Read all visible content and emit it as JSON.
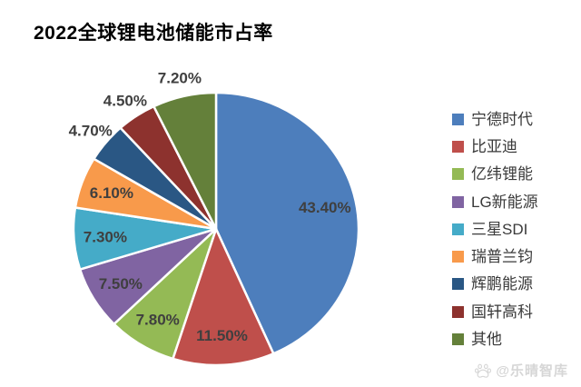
{
  "chart_data": {
    "type": "pie",
    "title": "2022全球锂电池储能市占率",
    "categories": [
      "宁德时代",
      "比亚迪",
      "亿纬锂能",
      "LG新能源",
      "三星SDI",
      "瑞普兰钧",
      "辉鹏能源",
      "国轩高科",
      "其他"
    ],
    "values": [
      43.4,
      11.5,
      7.8,
      7.5,
      7.3,
      6.1,
      4.7,
      4.5,
      7.2
    ],
    "labels": [
      "43.40%",
      "11.50%",
      "7.80%",
      "7.50%",
      "7.30%",
      "6.10%",
      "4.70%",
      "4.50%",
      "7.20%"
    ],
    "colors": [
      "#4d7ebc",
      "#bf4f4b",
      "#94ba55",
      "#8064a2",
      "#45abc8",
      "#f89a4b",
      "#2a5784",
      "#8d322e",
      "#64803a"
    ],
    "label_placement": [
      "inside",
      "inside",
      "inside",
      "inside",
      "inside",
      "inside",
      "outside",
      "outside",
      "outside"
    ],
    "label_color": "#3f3f3f",
    "legend_text_color": "#3a3a3a",
    "separator_color": "#ffffff",
    "start_angle_deg": 0,
    "direction": "clockwise",
    "legend_position": "right",
    "grid": "off"
  },
  "watermark": {
    "text": "@乐晴智库",
    "icon": "paw-icon",
    "color": "#d6d6d6"
  }
}
